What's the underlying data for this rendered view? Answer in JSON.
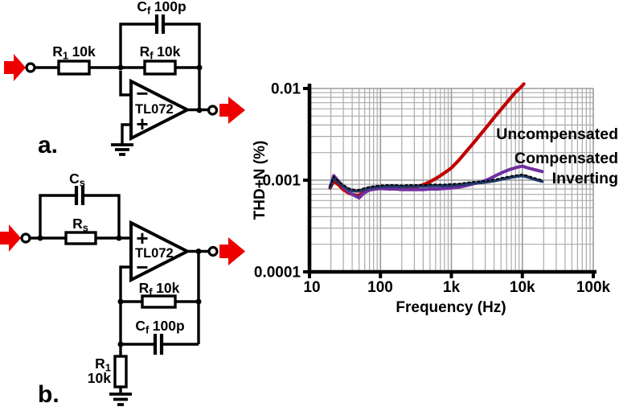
{
  "colors": {
    "arrow_red": "#EE0000",
    "uncompensated": "#C00000",
    "compensated": "#7030A0",
    "inverting": "#1F3864"
  },
  "circuit_a": {
    "label": "a.",
    "opamp": "TL072",
    "inverting_input_sign": "−",
    "noninverting_input_sign": "+",
    "cf": {
      "pre": "C",
      "sub": "f",
      "post": "100p"
    },
    "r1": {
      "pre": "R",
      "sub": "1",
      "post": "10k"
    },
    "rf": {
      "pre": "R",
      "sub": "f",
      "post": "10k"
    }
  },
  "circuit_b": {
    "label": "b.",
    "opamp": "TL072",
    "inverting_input_sign": "−",
    "noninverting_input_sign": "+",
    "cs": {
      "pre": "C",
      "sub": "s"
    },
    "rs": {
      "pre": "R",
      "sub": "s"
    },
    "rf": {
      "pre": "R",
      "sub": "f",
      "post": "10k"
    },
    "cf": {
      "pre": "C",
      "sub": "f",
      "post": "100p"
    },
    "r1": {
      "pre": "R",
      "sub": "1"
    },
    "r1_value": "10k"
  },
  "chart_data": {
    "type": "line",
    "title": "",
    "xlabel": "Frequency (Hz)",
    "ylabel": "THD+N (%)",
    "x_scale": "log",
    "y_scale": "log",
    "xlim": [
      10,
      100000
    ],
    "ylim": [
      0.0001,
      0.01
    ],
    "x_ticks": [
      "10",
      "100",
      "1k",
      "10k",
      "100k"
    ],
    "x_tick_values": [
      10,
      100,
      1000,
      10000,
      100000
    ],
    "y_ticks": [
      "0.01",
      "0.001",
      "0.0001"
    ],
    "y_tick_values": [
      0.01,
      0.001,
      0.0001
    ],
    "grid": "log major and minor gridlines, light gray",
    "legend_position": "inside-right",
    "series": [
      {
        "name": "Uncompensated",
        "color": "#C00000",
        "points": [
          [
            19.5,
            0.00082
          ],
          [
            22,
            0.00098
          ],
          [
            26,
            0.00088
          ],
          [
            30,
            0.00079
          ],
          [
            36,
            0.00072
          ],
          [
            43,
            0.00069
          ],
          [
            50,
            0.00068
          ],
          [
            58,
            0.00074
          ],
          [
            70,
            0.00079
          ],
          [
            85,
            0.00081
          ],
          [
            100,
            0.00082
          ],
          [
            130,
            0.00081
          ],
          [
            160,
            0.00082
          ],
          [
            200,
            0.00082
          ],
          [
            260,
            0.00083
          ],
          [
            330,
            0.00085
          ],
          [
            400,
            0.00089
          ],
          [
            500,
            0.00096
          ],
          [
            600,
            0.00104
          ],
          [
            700,
            0.00112
          ],
          [
            850,
            0.00124
          ],
          [
            1000,
            0.00136
          ],
          [
            1300,
            0.00168
          ],
          [
            1600,
            0.00203
          ],
          [
            2000,
            0.00249
          ],
          [
            2500,
            0.00307
          ],
          [
            3200,
            0.00388
          ],
          [
            4000,
            0.0048
          ],
          [
            5000,
            0.0059
          ],
          [
            6300,
            0.0073
          ],
          [
            8000,
            0.0091
          ],
          [
            9500,
            0.0103
          ],
          [
            10500,
            0.0112
          ]
        ]
      },
      {
        "name": "Compensated",
        "color": "#7030A0",
        "points": [
          [
            19.5,
            0.00084
          ],
          [
            22,
            0.00112
          ],
          [
            26,
            0.00096
          ],
          [
            30,
            0.00084
          ],
          [
            36,
            0.00074
          ],
          [
            43,
            0.00068
          ],
          [
            50,
            0.00064
          ],
          [
            58,
            0.00072
          ],
          [
            70,
            0.00078
          ],
          [
            85,
            0.0008
          ],
          [
            100,
            0.00081
          ],
          [
            130,
            0.0008
          ],
          [
            160,
            0.0008
          ],
          [
            200,
            0.00079
          ],
          [
            260,
            0.00079
          ],
          [
            330,
            0.00079
          ],
          [
            400,
            0.00079
          ],
          [
            500,
            0.0008
          ],
          [
            650,
            0.0008
          ],
          [
            800,
            0.00081
          ],
          [
            1000,
            0.00082
          ],
          [
            1300,
            0.00084
          ],
          [
            1600,
            0.00087
          ],
          [
            2000,
            0.00091
          ],
          [
            2600,
            0.00095
          ],
          [
            3300,
            0.00102
          ],
          [
            4200,
            0.00112
          ],
          [
            5300,
            0.00122
          ],
          [
            6700,
            0.00131
          ],
          [
            8400,
            0.00138
          ],
          [
            10000,
            0.00142
          ],
          [
            12000,
            0.00136
          ],
          [
            15000,
            0.0013
          ],
          [
            19000,
            0.00124
          ]
        ]
      },
      {
        "name": "Inverting",
        "color": "#1F3864",
        "overlay_dotted": true,
        "points": [
          [
            19.5,
            0.00083
          ],
          [
            22,
            0.00106
          ],
          [
            26,
            0.00094
          ],
          [
            30,
            0.00086
          ],
          [
            36,
            0.00079
          ],
          [
            43,
            0.00076
          ],
          [
            50,
            0.00076
          ],
          [
            58,
            0.00079
          ],
          [
            70,
            0.00082
          ],
          [
            85,
            0.00084
          ],
          [
            100,
            0.00085
          ],
          [
            130,
            0.00086
          ],
          [
            160,
            0.00086
          ],
          [
            200,
            0.00085
          ],
          [
            260,
            0.00086
          ],
          [
            330,
            0.00086
          ],
          [
            400,
            0.00086
          ],
          [
            500,
            0.00087
          ],
          [
            650,
            0.00087
          ],
          [
            800,
            0.00087
          ],
          [
            1000,
            0.00088
          ],
          [
            1300,
            0.00089
          ],
          [
            1600,
            0.00091
          ],
          [
            2000,
            0.00093
          ],
          [
            2600,
            0.00094
          ],
          [
            3300,
            0.00096
          ],
          [
            4200,
            0.00099
          ],
          [
            5300,
            0.00103
          ],
          [
            6700,
            0.00107
          ],
          [
            8400,
            0.0011
          ],
          [
            10000,
            0.00112
          ],
          [
            12000,
            0.00108
          ],
          [
            15000,
            0.00102
          ],
          [
            19000,
            0.00097
          ]
        ]
      }
    ],
    "legend": [
      {
        "label": "Uncompensated",
        "color": "#C00000"
      },
      {
        "label": "Compensated",
        "color": "#7030A0"
      },
      {
        "label": "Inverting",
        "color": "#1F3864"
      }
    ]
  }
}
